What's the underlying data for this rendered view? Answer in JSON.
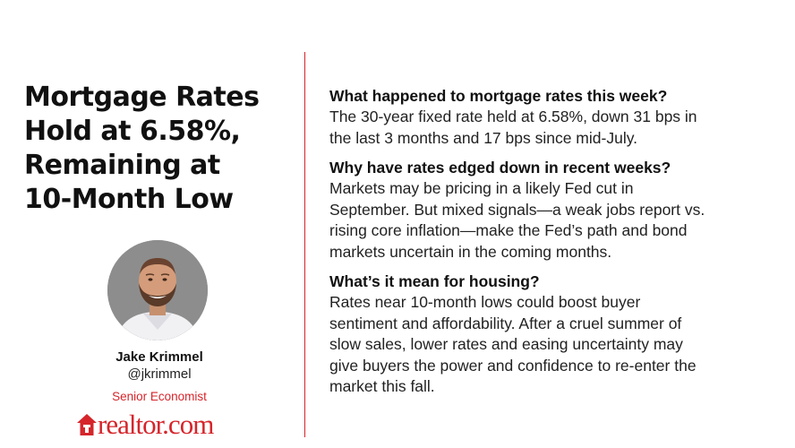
{
  "title_lines": [
    "Mortgage Rates",
    "Hold at 6.58%,",
    "Remaining at",
    "10-Month Low"
  ],
  "author": {
    "name": "Jake Krimmel",
    "handle": "@jkrimmel",
    "role": "Senior Economist"
  },
  "logo_text": "realtor.com",
  "qa": [
    {
      "question": "What happened to mortgage rates this week?",
      "answer_lines": [
        "The 30-year fixed rate held at 6.58%, down 31 bps in",
        "the last 3 months and 17 bps since mid-July."
      ]
    },
    {
      "question": "Why have rates edged down in recent weeks?",
      "answer_lines": [
        "Markets may be pricing in a likely Fed cut in",
        "September. But mixed signals—a weak jobs report vs.",
        "rising core inflation—make the Fed’s path and bond",
        "markets uncertain in the coming months."
      ]
    },
    {
      "question": "What’s it mean for housing?",
      "answer_lines": [
        "Rates near 10-month lows could boost buyer",
        "sentiment and affordability. After a cruel summer of",
        "slow sales, lower rates and easing uncertainty may",
        "give buyers the power and confidence to re-enter the",
        "market this fall."
      ]
    }
  ],
  "colors": {
    "accent": "#d5252b",
    "text": "#111111",
    "background": "#ffffff"
  },
  "icons": {
    "logo_mark": "house-icon",
    "avatar": "person-avatar"
  }
}
